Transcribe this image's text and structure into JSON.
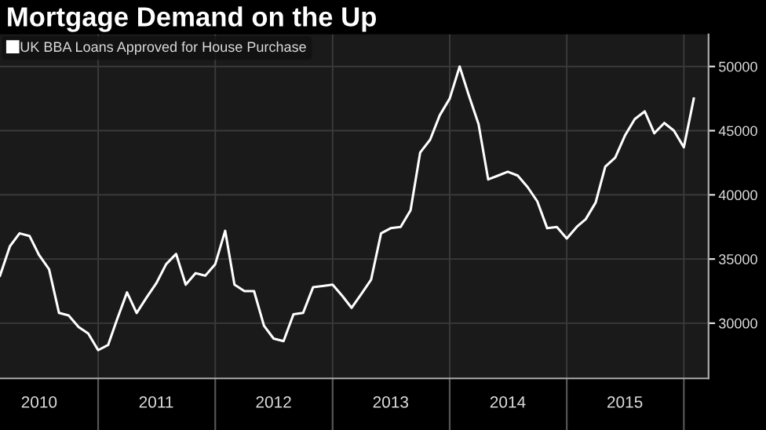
{
  "chart_data": {
    "type": "line",
    "title": "Mortgage Demand on the Up",
    "legend": "top left",
    "grid": true,
    "x": [
      "2010-03",
      "2010-04",
      "2010-05",
      "2010-06",
      "2010-07",
      "2010-08",
      "2010-09",
      "2010-10",
      "2010-11",
      "2010-12",
      "2011-01",
      "2011-02",
      "2011-03",
      "2011-04",
      "2011-05",
      "2011-06",
      "2011-07",
      "2011-08",
      "2011-09",
      "2011-10",
      "2011-11",
      "2011-12",
      "2012-01",
      "2012-02",
      "2012-03",
      "2012-04",
      "2012-05",
      "2012-06",
      "2012-07",
      "2012-08",
      "2012-09",
      "2012-10",
      "2012-11",
      "2012-12",
      "2013-01",
      "2013-02",
      "2013-03",
      "2013-04",
      "2013-05",
      "2013-06",
      "2013-07",
      "2013-08",
      "2013-09",
      "2013-10",
      "2013-11",
      "2013-12",
      "2014-01",
      "2014-02",
      "2014-03",
      "2014-04",
      "2014-05",
      "2014-06",
      "2014-07",
      "2014-08",
      "2014-09",
      "2014-10",
      "2014-11",
      "2014-12",
      "2015-01",
      "2015-02",
      "2015-03",
      "2015-04",
      "2015-05",
      "2015-06",
      "2015-07",
      "2015-08",
      "2015-09",
      "2015-10",
      "2015-11",
      "2015-12",
      "2016-01",
      "2016-02"
    ],
    "series": [
      {
        "name": "UK BBA Loans Approved for House Purchase",
        "color": "#ffffff",
        "values": [
          33700,
          36000,
          37000,
          36800,
          35300,
          34200,
          30800,
          30600,
          29700,
          29200,
          27900,
          28300,
          30300,
          32400,
          30800,
          32000,
          33100,
          34600,
          35400,
          33000,
          33900,
          33700,
          34600,
          37200,
          33000,
          32500,
          32500,
          29800,
          28800,
          28600,
          30700,
          30800,
          32800,
          32900,
          33000,
          32100,
          31200,
          32300,
          33400,
          37000,
          37400,
          37500,
          38800,
          43300,
          44300,
          46200,
          47500,
          50000,
          47800,
          45500,
          41200,
          41500,
          41800,
          41500,
          40600,
          39500,
          37400,
          37500,
          36600,
          37500,
          38100,
          39400,
          42200,
          42900,
          44600,
          45900,
          46500,
          44800,
          45600,
          45000,
          43700,
          47500
        ]
      }
    ],
    "xlim": [
      "2010-03-01",
      "2016-03-18"
    ],
    "xticks": [
      {
        "value": "2010-07-01",
        "label": "2010"
      },
      {
        "value": "2011-01-01",
        "label": null
      },
      {
        "value": "2011-07-01",
        "label": "2011"
      },
      {
        "value": "2012-01-01",
        "label": null
      },
      {
        "value": "2012-07-01",
        "label": "2012"
      },
      {
        "value": "2013-01-01",
        "label": null
      },
      {
        "value": "2013-07-01",
        "label": "2013"
      },
      {
        "value": "2014-01-01",
        "label": null
      },
      {
        "value": "2014-07-01",
        "label": "2014"
      },
      {
        "value": "2015-01-01",
        "label": null
      },
      {
        "value": "2015-07-01",
        "label": "2015"
      },
      {
        "value": "2016-01-01",
        "label": null
      }
    ],
    "ylim": [
      25700,
      52500
    ],
    "yticks": [
      30000,
      35000,
      40000,
      45000,
      50000
    ]
  }
}
